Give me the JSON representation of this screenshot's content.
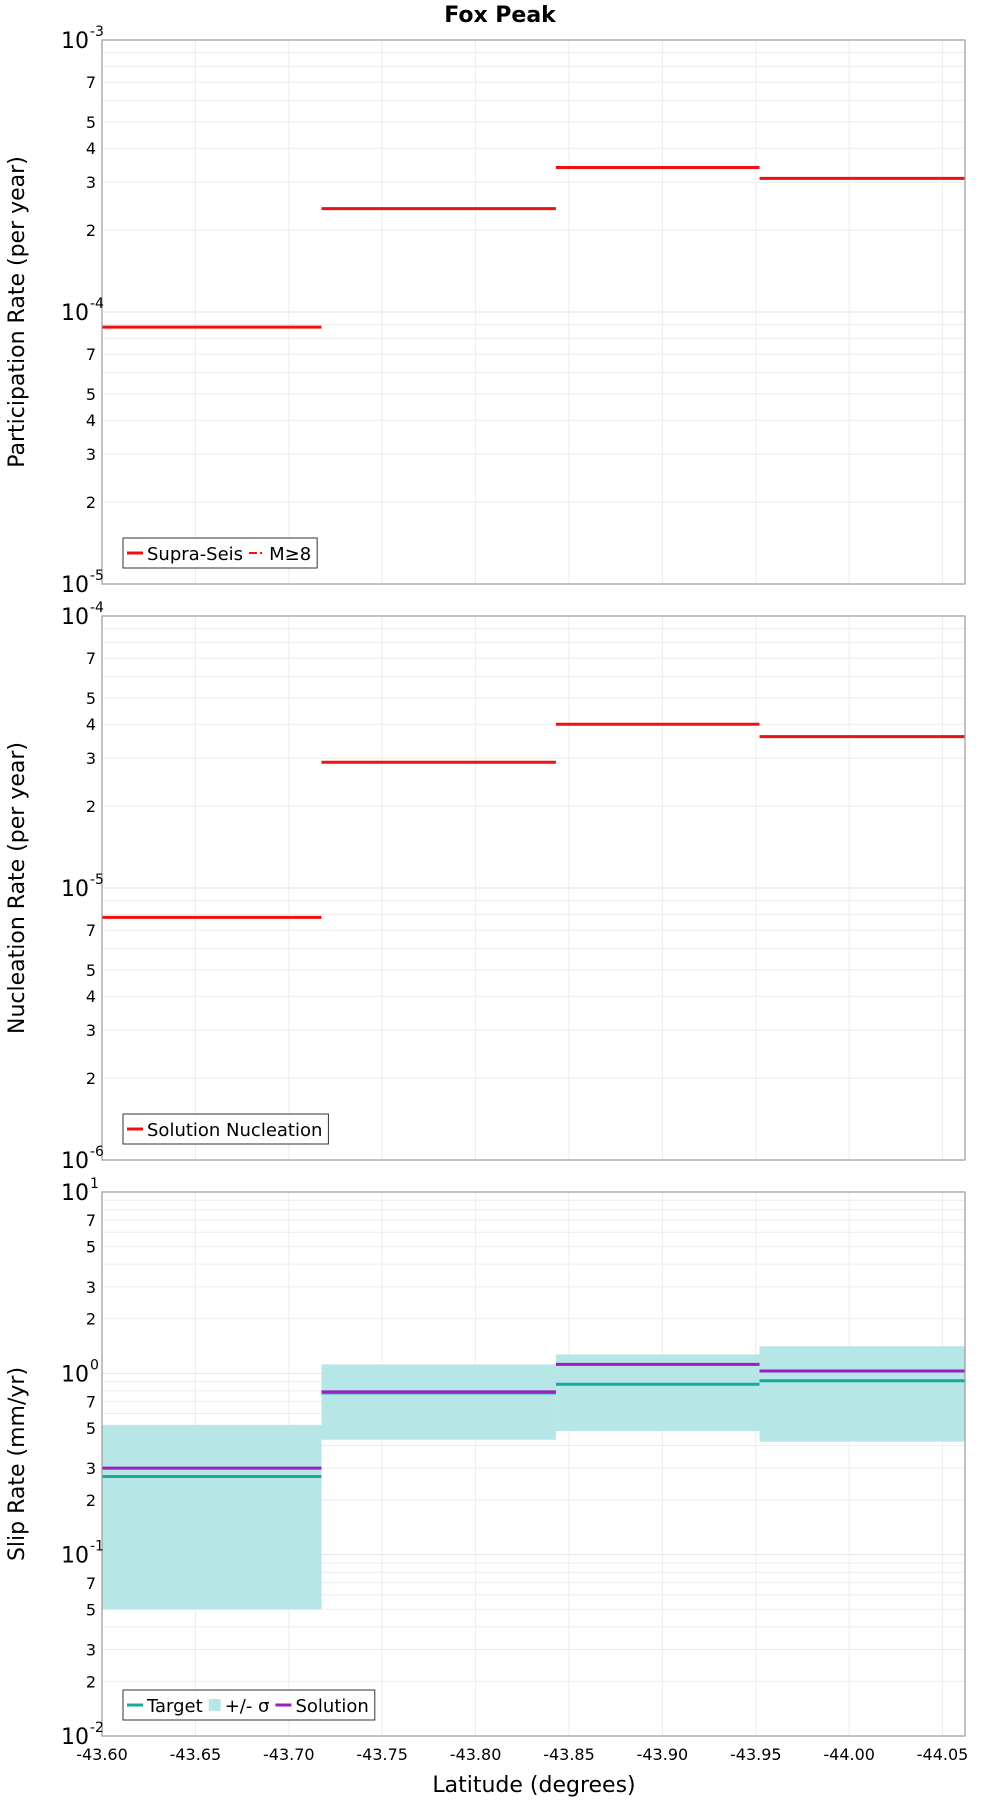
{
  "title": "Fox Peak",
  "xlabel": "Latitude (degrees)",
  "colors": {
    "red": "#ee1111",
    "teal": "#1aa89a",
    "band": "#b7e6e6",
    "purple": "#9a1ec2"
  },
  "chart_data": {
    "type": "line",
    "x_edges": [
      -43.6,
      -43.7175,
      -43.843,
      -43.952,
      -44.062
    ],
    "x_ticks": [
      -43.6,
      -43.65,
      -43.7,
      -43.75,
      -43.8,
      -43.85,
      -43.9,
      -43.95,
      -44.0,
      -44.05
    ],
    "x_tick_labels": [
      "-43.60",
      "-43.65",
      "-43.70",
      "-43.75",
      "-43.80",
      "-43.85",
      "-43.90",
      "-43.95",
      "-44.00",
      "-44.05"
    ],
    "panels": [
      {
        "ylabel": "Participation Rate (per year)",
        "ylim_exp": [
          -5,
          -3
        ],
        "major_ticks": [
          {
            "exp": -3
          },
          {
            "exp": -4
          },
          {
            "exp": -5
          }
        ],
        "minor_labels": [
          "2",
          "3",
          "4",
          "5",
          "7"
        ],
        "legend": [
          {
            "label": "Supra-Seis",
            "style": "solid",
            "color": "#ee1111"
          },
          {
            "label": "M≥8",
            "style": "dashdot",
            "color": "#ee1111"
          }
        ],
        "series": [
          {
            "name": "Supra-Seis",
            "kind": "step",
            "color": "#ee1111",
            "values": [
              8.8e-05,
              0.00024,
              0.00034,
              0.00031
            ]
          }
        ]
      },
      {
        "ylabel": "Nucleation Rate (per year)",
        "ylim_exp": [
          -6,
          -4
        ],
        "major_ticks": [
          {
            "exp": -4
          },
          {
            "exp": -5
          },
          {
            "exp": -6
          }
        ],
        "minor_labels": [
          "2",
          "3",
          "4",
          "5",
          "7"
        ],
        "legend": [
          {
            "label": "Solution Nucleation",
            "style": "solid",
            "color": "#ee1111"
          }
        ],
        "series": [
          {
            "name": "Solution Nucleation",
            "kind": "step",
            "color": "#ee1111",
            "values": [
              7.8e-06,
              2.9e-05,
              4e-05,
              3.6e-05
            ]
          }
        ]
      },
      {
        "ylabel": "Slip Rate (mm/yr)",
        "ylim_exp": [
          -2,
          1
        ],
        "major_ticks": [
          {
            "exp": 1
          },
          {
            "exp": 0
          },
          {
            "exp": -1
          },
          {
            "exp": -2
          }
        ],
        "minor_labels": [
          "2",
          "3",
          "5",
          "7"
        ],
        "legend": [
          {
            "label": "Target",
            "style": "solid",
            "color": "#1aa89a"
          },
          {
            "label": "+/- σ",
            "style": "band",
            "color": "#b7e6e6"
          },
          {
            "label": "Solution",
            "style": "solid",
            "color": "#9a1ec2"
          }
        ],
        "series": [
          {
            "name": "+/- σ",
            "kind": "band",
            "color": "#b7e6e6",
            "low": [
              0.05,
              0.43,
              0.48,
              0.42
            ],
            "high": [
              0.52,
              1.12,
              1.27,
              1.41
            ]
          },
          {
            "name": "Target",
            "kind": "step",
            "color": "#1aa89a",
            "values": [
              0.27,
              0.78,
              0.87,
              0.91
            ]
          },
          {
            "name": "Solution",
            "kind": "step",
            "color": "#9a1ec2",
            "values": [
              0.3,
              0.79,
              1.12,
              1.03
            ]
          }
        ]
      }
    ]
  }
}
